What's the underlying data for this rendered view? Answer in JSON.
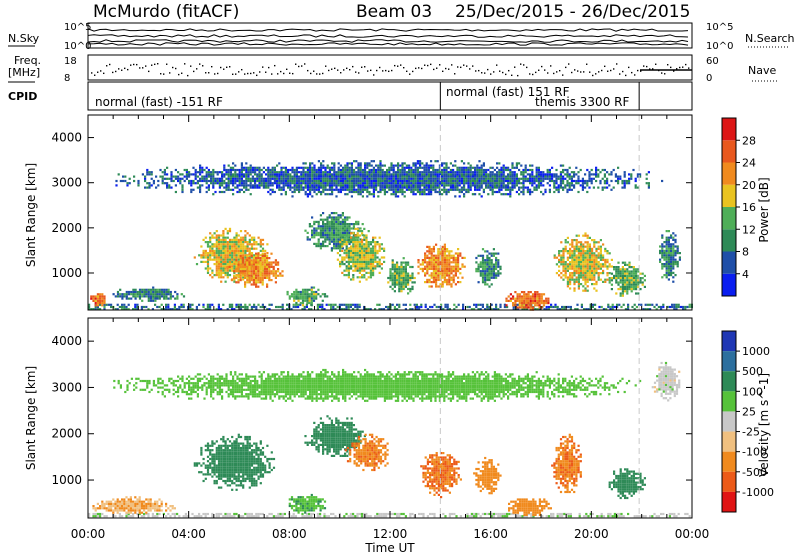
{
  "header": {
    "station": "McMurdo (fitACF)",
    "beam_label": "Beam 03",
    "date_range": "25/Dec/2015 - 26/Dec/2015"
  },
  "strips": {
    "nsky_label": "N.Sky",
    "nsearch_label": "N.Search",
    "nsky_ticks": [
      "10^5",
      "10^0"
    ],
    "nsearch_ticks": [
      "10^5",
      "10^0"
    ],
    "freq_label_top": "Freq.",
    "freq_label_unit": "[MHz]",
    "freq_ticks": [
      "18",
      "8"
    ],
    "nave_label": "Nave",
    "nave_ticks": [
      "60",
      "0"
    ],
    "cpid_label": "CPID",
    "cpid_segments": [
      {
        "text": "normal (fast) -151 RF",
        "start": 0,
        "end": 14
      },
      {
        "text": "normal (fast) 151 RF",
        "start": 14,
        "end": 21.9
      },
      {
        "text": "themis 3300 RF",
        "start": 14,
        "end": 21.9
      }
    ],
    "mode_change_hours": [
      14.0,
      21.9
    ]
  },
  "chart_data": [
    {
      "type": "heatmap",
      "name": "power-panel",
      "ylabel": "Slant Range [km]",
      "xlabel": "Time UT",
      "xlim_hours": [
        0,
        24
      ],
      "ylim_km": [
        180,
        4500
      ],
      "yticks": [
        1000,
        2000,
        3000,
        4000
      ],
      "xtick_labels": [
        "00:00",
        "04:00",
        "08:00",
        "12:00",
        "16:00",
        "20:00",
        "00:00"
      ],
      "colorbar": {
        "label": "Power [dB]",
        "ticks": [
          "4",
          "8",
          "12",
          "16",
          "20",
          "24",
          "28"
        ],
        "colors": [
          "#0a1ef0",
          "#1f4fa8",
          "#2e8a57",
          "#4fae58",
          "#e9c320",
          "#f08a1e",
          "#e8581e",
          "#dc1616"
        ]
      },
      "echo_regions": [
        {
          "t0": 0.0,
          "t1": 24.0,
          "r0": 200,
          "r1": 320,
          "v": 8
        },
        {
          "t0": 0.0,
          "t1": 0.8,
          "r0": 250,
          "r1": 600,
          "v": 24
        },
        {
          "t0": 0.8,
          "t1": 4.0,
          "r0": 400,
          "r1": 700,
          "v": 9
        },
        {
          "t0": 4.2,
          "t1": 7.2,
          "r0": 800,
          "r1": 2000,
          "v": 18
        },
        {
          "t0": 5.5,
          "t1": 7.8,
          "r0": 700,
          "r1": 1500,
          "v": 22
        },
        {
          "t0": 7.8,
          "t1": 9.5,
          "r0": 300,
          "r1": 700,
          "v": 12
        },
        {
          "t0": 8.6,
          "t1": 11.0,
          "r0": 1500,
          "r1": 2400,
          "v": 11
        },
        {
          "t0": 9.8,
          "t1": 11.8,
          "r0": 800,
          "r1": 2000,
          "v": 16
        },
        {
          "t0": 11.8,
          "t1": 13.0,
          "r0": 500,
          "r1": 1400,
          "v": 13
        },
        {
          "t0": 13.0,
          "t1": 15.0,
          "r0": 650,
          "r1": 1700,
          "v": 22
        },
        {
          "t0": 15.3,
          "t1": 16.4,
          "r0": 700,
          "r1": 1600,
          "v": 10
        },
        {
          "t0": 16.5,
          "t1": 18.4,
          "r0": 200,
          "r1": 650,
          "v": 24
        },
        {
          "t0": 18.5,
          "t1": 20.8,
          "r0": 600,
          "r1": 1900,
          "v": 18
        },
        {
          "t0": 20.6,
          "t1": 22.2,
          "r0": 500,
          "r1": 1300,
          "v": 13
        },
        {
          "t0": 22.6,
          "t1": 23.5,
          "r0": 800,
          "r1": 2000,
          "v": 9
        },
        {
          "t0": 1.0,
          "t1": 22.8,
          "r0": 2700,
          "r1": 3500,
          "v": 7
        }
      ]
    },
    {
      "type": "heatmap",
      "name": "velocity-panel",
      "ylabel": "Slant Range [km]",
      "xlabel": "Time UT",
      "xlim_hours": [
        0,
        24
      ],
      "ylim_km": [
        180,
        4500
      ],
      "yticks": [
        1000,
        2000,
        3000,
        4000
      ],
      "xtick_labels": [
        "00:00",
        "04:00",
        "08:00",
        "12:00",
        "16:00",
        "20:00",
        "00:00"
      ],
      "colorbar": {
        "label": "Velocity [m s^-1]",
        "ticks": [
          "1000",
          "500",
          "100",
          "25",
          "-25",
          "-100",
          "-500",
          "-1000"
        ],
        "colors": [
          "#1f37b4",
          "#2c6f9e",
          "#2e8a57",
          "#56c23a",
          "#c8c8c8",
          "#f0c080",
          "#f08a1e",
          "#ec5a18",
          "#e01414"
        ]
      },
      "echo_regions": [
        {
          "t0": 0.0,
          "t1": 24.0,
          "r0": 200,
          "r1": 290,
          "v": 10
        },
        {
          "t0": 0.0,
          "t1": 3.5,
          "r0": 280,
          "r1": 650,
          "v": -90
        },
        {
          "t0": 4.2,
          "t1": 7.4,
          "r0": 800,
          "r1": 2000,
          "v": 300
        },
        {
          "t0": 7.8,
          "t1": 9.5,
          "r0": 300,
          "r1": 700,
          "v": 80
        },
        {
          "t0": 8.6,
          "t1": 11.0,
          "r0": 1500,
          "r1": 2400,
          "v": 200
        },
        {
          "t0": 10.2,
          "t1": 12.0,
          "r0": 1200,
          "r1": 2000,
          "v": -400
        },
        {
          "t0": 13.2,
          "t1": 14.8,
          "r0": 650,
          "r1": 1700,
          "v": -500
        },
        {
          "t0": 15.3,
          "t1": 16.4,
          "r0": 700,
          "r1": 1500,
          "v": -350
        },
        {
          "t0": 16.6,
          "t1": 18.4,
          "r0": 250,
          "r1": 650,
          "v": -300
        },
        {
          "t0": 18.4,
          "t1": 19.6,
          "r0": 700,
          "r1": 2000,
          "v": -450
        },
        {
          "t0": 20.6,
          "t1": 22.2,
          "r0": 600,
          "r1": 1300,
          "v": 250
        },
        {
          "t0": 22.4,
          "t1": 23.5,
          "r0": 2700,
          "r1": 3600,
          "v": 0
        },
        {
          "t0": 1.0,
          "t1": 22.0,
          "r0": 2700,
          "r1": 3400,
          "v": 60
        }
      ]
    }
  ]
}
